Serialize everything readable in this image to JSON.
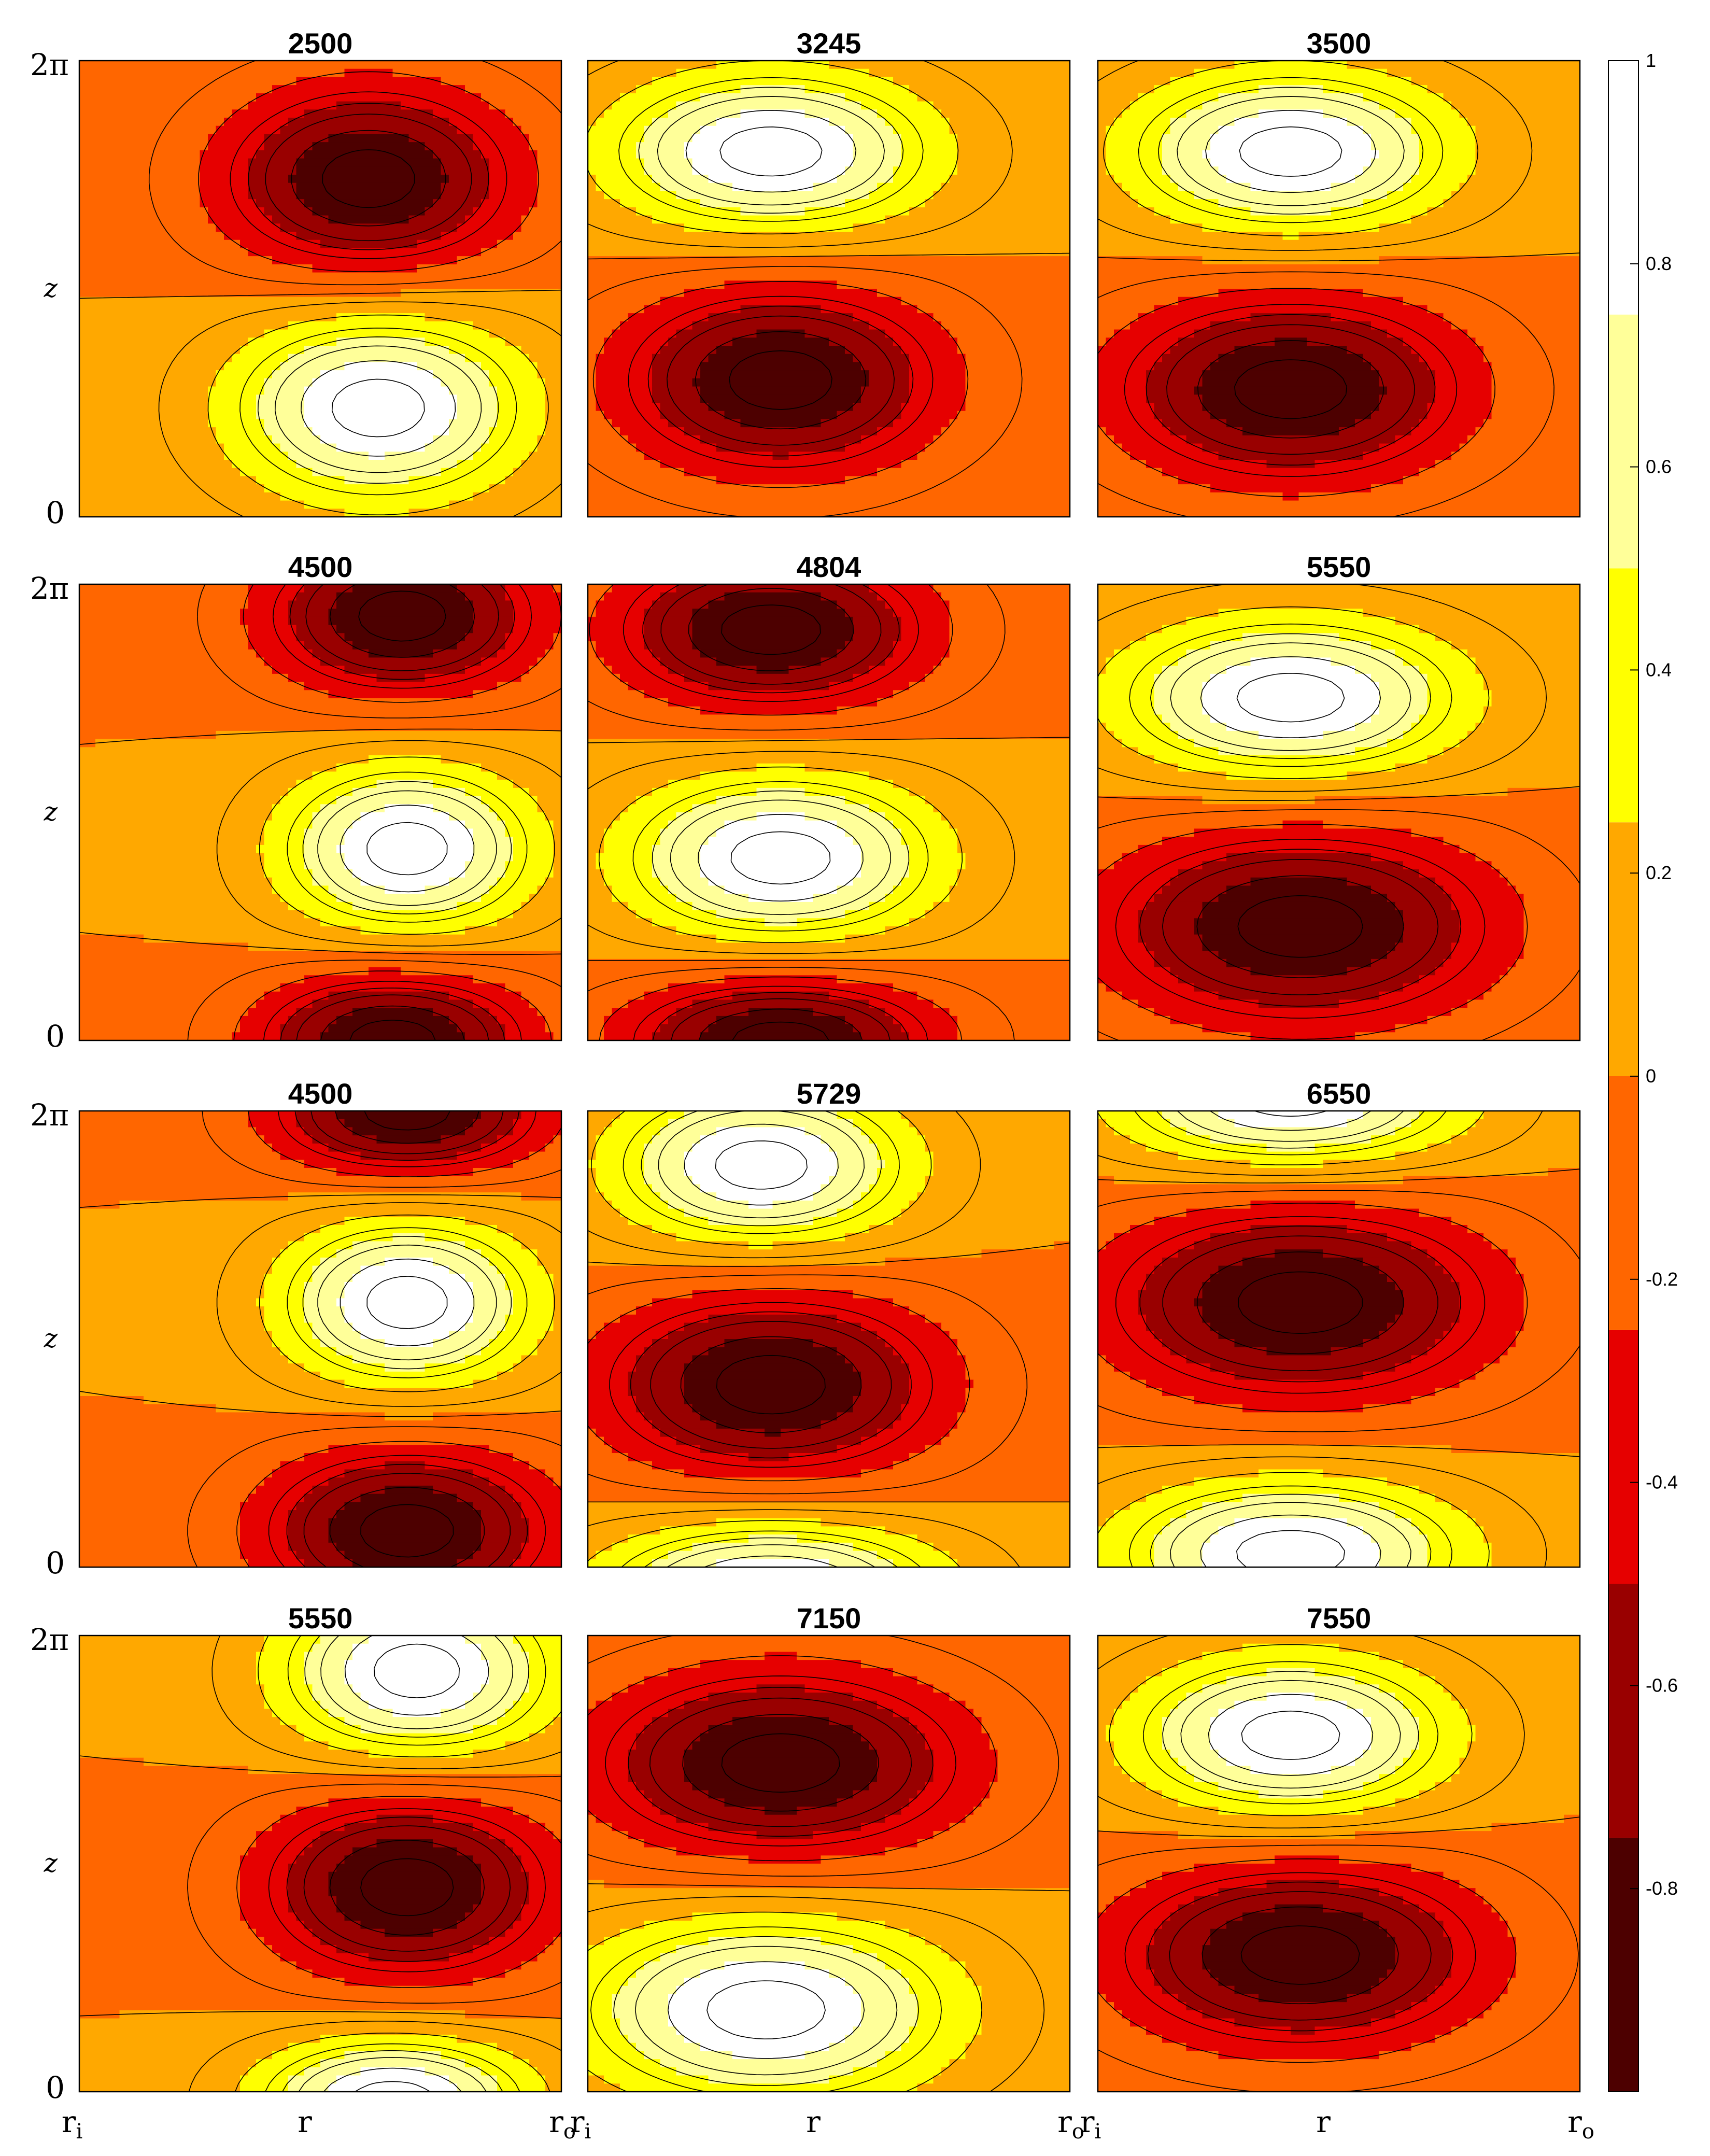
{
  "chart_data": {
    "type": "heatmap",
    "subtype": "filled-contour",
    "grid": "3x4",
    "x_axis": {
      "label": "r",
      "tick_left": "r",
      "tick_left_sub": "i",
      "tick_right": "r",
      "tick_right_sub": "o"
    },
    "y_axis": {
      "label": "z",
      "tick_top": "2π",
      "tick_bottom": "0"
    },
    "colorbar": {
      "range": [
        -1,
        1
      ],
      "tick_values": [
        1,
        0.8,
        0.6,
        0.4,
        0.2,
        0,
        -0.2,
        -0.4,
        -0.6,
        -0.8
      ],
      "tick_labels": [
        "1",
        "0.8",
        "0.6",
        "0.4",
        "0.2",
        "0",
        "-0.2",
        "-0.4",
        "-0.6",
        "-0.8"
      ],
      "level_bounds": [
        -1,
        -0.75,
        -0.5,
        -0.25,
        0,
        0.25,
        0.5,
        0.75,
        1
      ],
      "level_colors": [
        "#4d0000",
        "#990000",
        "#e60000",
        "#ff6600",
        "#ffa800",
        "#ffff00",
        "#ffff99",
        "#ffffff"
      ],
      "line_levels": [
        -0.9,
        -0.75,
        -0.6,
        -0.5,
        -0.4,
        -0.25,
        -0.1,
        0,
        0.1,
        0.25,
        0.4,
        0.5,
        0.6,
        0.75,
        0.9
      ]
    },
    "panels": [
      {
        "title": "2500",
        "cells": [
          {
            "r": 0.6,
            "z": 0.74,
            "a": -1,
            "wr": 0.3,
            "wz": 0.2
          },
          {
            "r": 0.62,
            "z": 0.24,
            "a": 1,
            "wr": 0.3,
            "wz": 0.2
          }
        ]
      },
      {
        "title": "3245",
        "cells": [
          {
            "r": 0.38,
            "z": 0.8,
            "a": 1,
            "wr": 0.33,
            "wz": 0.17
          },
          {
            "r": 0.4,
            "z": 0.3,
            "a": -1,
            "wr": 0.33,
            "wz": 0.2
          }
        ]
      },
      {
        "title": "3500",
        "cells": [
          {
            "r": 0.4,
            "z": 0.8,
            "a": 1,
            "wr": 0.33,
            "wz": 0.17
          },
          {
            "r": 0.4,
            "z": 0.28,
            "a": -1,
            "wr": 0.36,
            "wz": 0.2
          }
        ]
      },
      {
        "title": "4500",
        "cells": [
          {
            "r": 0.67,
            "z": 0.93,
            "a": -1,
            "wr": 0.28,
            "wz": 0.17
          },
          {
            "r": 0.68,
            "z": 0.42,
            "a": 1,
            "wr": 0.26,
            "wz": 0.18
          },
          {
            "r": 0.65,
            "z": 0.0,
            "a": -1,
            "wr": 0.28,
            "wz": 0.15
          }
        ]
      },
      {
        "title": "4804",
        "cells": [
          {
            "r": 0.38,
            "z": 0.9,
            "a": -1,
            "wr": 0.32,
            "wz": 0.17
          },
          {
            "r": 0.4,
            "z": 0.4,
            "a": 1,
            "wr": 0.32,
            "wz": 0.18
          },
          {
            "r": 0.4,
            "z": 0.0,
            "a": -1,
            "wr": 0.32,
            "wz": 0.14
          }
        ]
      },
      {
        "title": "5550",
        "cells": [
          {
            "r": 0.4,
            "z": 0.75,
            "a": 1,
            "wr": 0.35,
            "wz": 0.17
          },
          {
            "r": 0.42,
            "z": 0.25,
            "a": -1,
            "wr": 0.4,
            "wz": 0.21
          }
        ]
      },
      {
        "title": "4500",
        "cells": [
          {
            "r": 0.68,
            "z": 1.0,
            "a": -1,
            "wr": 0.28,
            "wz": 0.14
          },
          {
            "r": 0.68,
            "z": 0.58,
            "a": 1,
            "wr": 0.26,
            "wz": 0.18
          },
          {
            "r": 0.68,
            "z": 0.08,
            "a": -1,
            "wr": 0.3,
            "wz": 0.18
          }
        ]
      },
      {
        "title": "5729",
        "cells": [
          {
            "r": 0.36,
            "z": 0.88,
            "a": 1,
            "wr": 0.3,
            "wz": 0.17
          },
          {
            "r": 0.38,
            "z": 0.4,
            "a": -1,
            "wr": 0.35,
            "wz": 0.2
          },
          {
            "r": 0.38,
            "z": -0.05,
            "a": 1,
            "wr": 0.35,
            "wz": 0.15
          }
        ]
      },
      {
        "title": "6550",
        "cells": [
          {
            "r": 0.4,
            "z": 1.03,
            "a": 1,
            "wr": 0.35,
            "wz": 0.15
          },
          {
            "r": 0.42,
            "z": 0.58,
            "a": -1,
            "wr": 0.4,
            "wz": 0.21
          },
          {
            "r": 0.4,
            "z": 0.03,
            "a": 1,
            "wr": 0.35,
            "wz": 0.16
          }
        ]
      },
      {
        "title": "5550",
        "cells": [
          {
            "r": 0.7,
            "z": 0.92,
            "a": 1,
            "wr": 0.28,
            "wz": 0.19
          },
          {
            "r": 0.68,
            "z": 0.45,
            "a": -1,
            "wr": 0.3,
            "wz": 0.2
          },
          {
            "r": 0.65,
            "z": -0.02,
            "a": 1,
            "wr": 0.28,
            "wz": 0.14
          }
        ]
      },
      {
        "title": "7150",
        "cells": [
          {
            "r": 0.4,
            "z": 0.72,
            "a": -1,
            "wr": 0.38,
            "wz": 0.2
          },
          {
            "r": 0.37,
            "z": 0.18,
            "a": 1,
            "wr": 0.38,
            "wz": 0.2
          }
        ]
      },
      {
        "title": "7550",
        "cells": [
          {
            "r": 0.4,
            "z": 0.78,
            "a": 1,
            "wr": 0.32,
            "wz": 0.17
          },
          {
            "r": 0.42,
            "z": 0.3,
            "a": -1,
            "wr": 0.38,
            "wz": 0.2
          }
        ]
      }
    ]
  }
}
